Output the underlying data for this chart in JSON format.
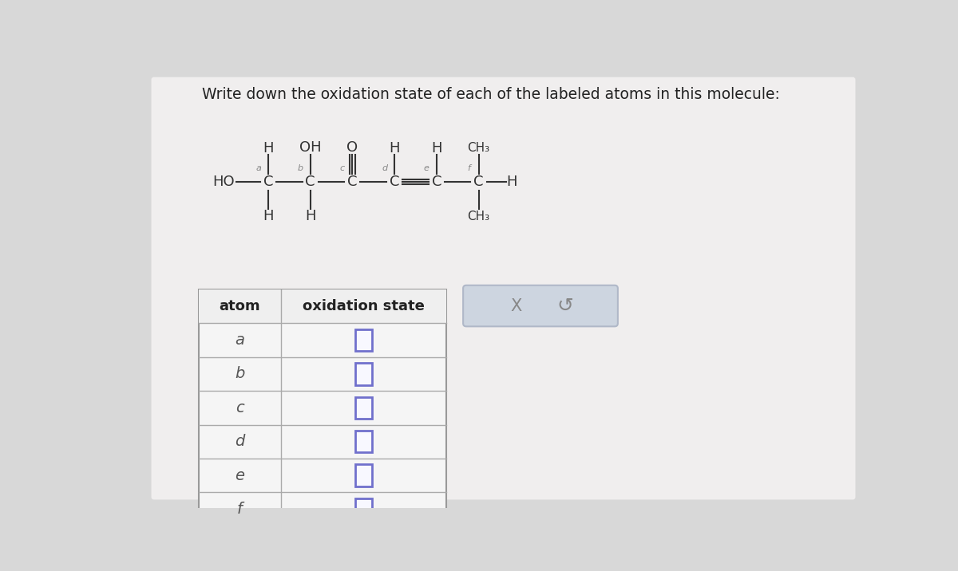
{
  "title": "Write down the oxidation state of each of the labeled atoms in this molecule:",
  "title_fontsize": 13.5,
  "bg_color": "#d8d8d8",
  "panel_color": "#f0eeee",
  "table_bg": "#f5f5f5",
  "header_bg": "#e8e8e8",
  "input_box_color": "#7070cc",
  "input_box_fill": "#f8f8ff",
  "atoms": [
    "a",
    "b",
    "c",
    "d",
    "e",
    "f"
  ],
  "col1_header": "atom",
  "col2_header": "oxidation state",
  "side_box_bg": "#cdd5e0",
  "side_box_border": "#b0b8c8",
  "x_symbol": "X",
  "undo_symbol": "↺",
  "mol_fs": 13,
  "lbl_fs": 8,
  "sub_fs": 11
}
